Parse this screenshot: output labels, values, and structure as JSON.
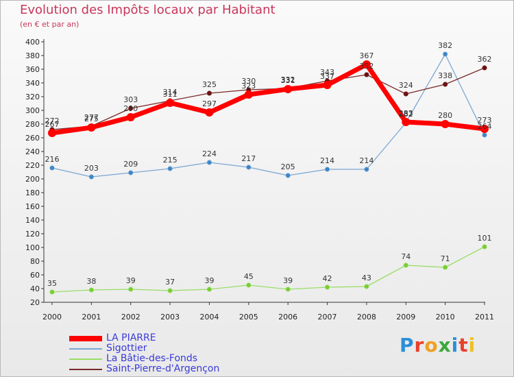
{
  "title": "Evolution des Impôts locaux par Habitant",
  "subtitle": "(en € et par an)",
  "logo_text": "Proxiti",
  "chart_data": {
    "type": "line",
    "title": "Evolution des Impôts locaux par Habitant",
    "subtitle": "(en € et par an)",
    "x": [
      "2000",
      "2001",
      "2002",
      "2003",
      "2004",
      "2005",
      "2006",
      "2007",
      "2008",
      "2009",
      "2010",
      "2011"
    ],
    "ylim": [
      20,
      400
    ],
    "yticks": [
      20,
      40,
      60,
      80,
      100,
      120,
      140,
      160,
      180,
      200,
      220,
      240,
      260,
      280,
      300,
      320,
      340,
      360,
      380,
      400
    ],
    "grid": false,
    "legend_position": "bottom-left",
    "series": [
      {
        "name": "LA PIARRE",
        "color": "#ff0000",
        "values": [
          267,
          275,
          290,
          311,
          297,
          323,
          331,
          337,
          367,
          283,
          280,
          273
        ]
      },
      {
        "name": "Sigottier",
        "color": "#7ba7d3",
        "values": [
          216,
          203,
          209,
          215,
          224,
          217,
          205,
          214,
          214,
          282,
          382,
          264
        ]
      },
      {
        "name": "La Bâtie-des-Fonds",
        "color": "#99dd66",
        "values": [
          35,
          38,
          39,
          37,
          39,
          45,
          39,
          42,
          43,
          74,
          71,
          101
        ]
      },
      {
        "name": "Saint-Pierre-d'Argençon",
        "color": "#7a2828",
        "values": [
          272,
          277,
          303,
          314,
          325,
          330,
          332,
          343,
          352,
          324,
          338,
          362
        ]
      }
    ]
  }
}
